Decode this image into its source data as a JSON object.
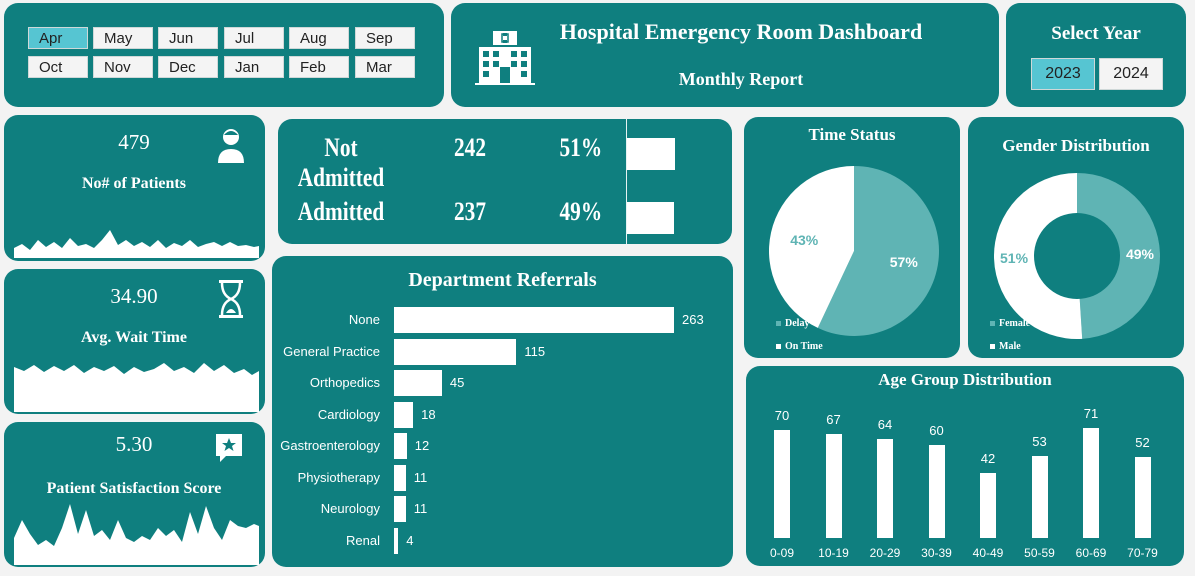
{
  "filters": {
    "months": [
      "Apr",
      "May",
      "Jun",
      "Jul",
      "Aug",
      "Sep",
      "Oct",
      "Nov",
      "Dec",
      "Jan",
      "Feb",
      "Mar"
    ],
    "active_month": "Apr",
    "year_title": "Select Year",
    "years": [
      "2023",
      "2024"
    ],
    "active_year": "2023"
  },
  "header": {
    "title": "Hospital Emergency Room Dashboard",
    "subtitle": "Monthly Report",
    "icon": "hospital-icon"
  },
  "kpis": {
    "patients": {
      "value": "479",
      "label": "No# of Patients",
      "icon": "patient-icon"
    },
    "wait_time": {
      "value": "34.90",
      "label": "Avg. Wait Time",
      "icon": "hourglass-icon"
    },
    "satisfaction": {
      "value": "5.30",
      "label": "Patient Satisfaction Score",
      "icon": "star-chat-icon"
    }
  },
  "admission": {
    "rows": [
      {
        "label": "Not Admitted",
        "count": "242",
        "pct": "51%",
        "fraction": 0.51
      },
      {
        "label": "Admitted",
        "count": "237",
        "pct": "49%",
        "fraction": 0.49
      }
    ]
  },
  "colors": {
    "panel": "#0f7f7f",
    "accent": "#5fb4b4",
    "active_filter": "#56c5d2"
  },
  "chart_data": [
    {
      "type": "bar",
      "orientation": "horizontal",
      "title": "Department Referrals",
      "categories": [
        "None",
        "General Practice",
        "Orthopedics",
        "Cardiology",
        "Gastroenterology",
        "Physiotherapy",
        "Neurology",
        "Renal"
      ],
      "values": [
        263,
        115,
        45,
        18,
        12,
        11,
        11,
        4
      ]
    },
    {
      "type": "pie",
      "title": "Time Status",
      "labels": [
        "Delay",
        "On Time"
      ],
      "values": [
        57,
        43
      ],
      "value_labels": [
        "57%",
        "43%"
      ]
    },
    {
      "type": "pie",
      "style": "donut",
      "title": "Gender Distribution",
      "labels": [
        "Female",
        "Male"
      ],
      "values": [
        49,
        51
      ],
      "value_labels": [
        "49%",
        "51%"
      ]
    },
    {
      "type": "bar",
      "title": "Age Group Distribution",
      "categories": [
        "0-09",
        "10-19",
        "20-29",
        "30-39",
        "40-49",
        "50-59",
        "60-69",
        "70-79"
      ],
      "values": [
        70,
        67,
        64,
        60,
        42,
        53,
        71,
        52
      ]
    }
  ]
}
